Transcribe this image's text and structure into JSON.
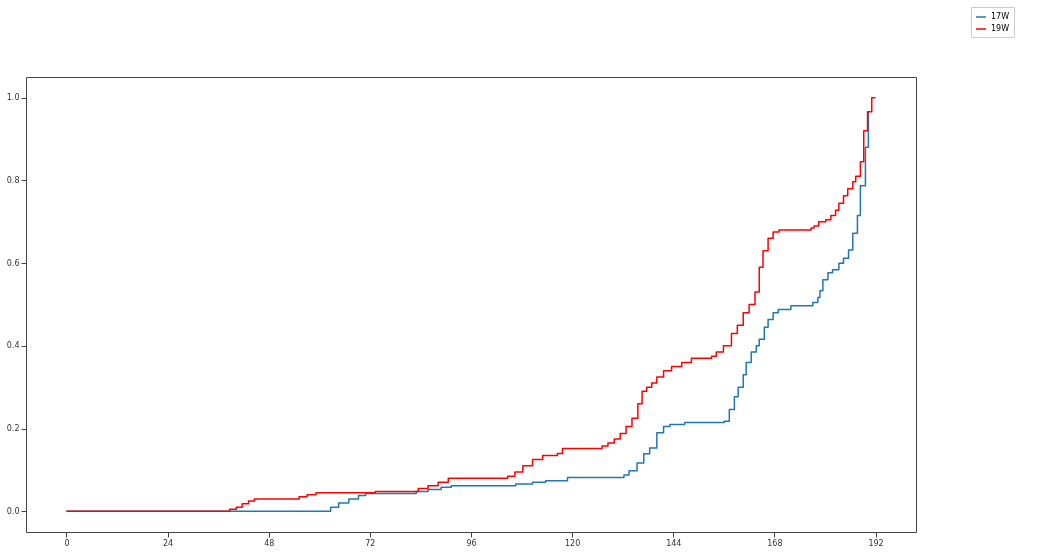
{
  "chart_data": {
    "type": "step",
    "legend": "top right",
    "grid": false,
    "line_style": "solid",
    "marker": "none",
    "xlim": [
      -9.6,
      201.6
    ],
    "ylim": [
      -0.05,
      1.05
    ],
    "xticks": [
      0,
      24,
      48,
      72,
      96,
      120,
      144,
      168,
      192
    ],
    "yticks": [
      {
        "value": 0,
        "label": "0.0"
      },
      {
        "value": 0.2,
        "label": "0.2"
      },
      {
        "value": 0.4,
        "label": "0.4"
      },
      {
        "value": 0.6,
        "label": "0.6"
      },
      {
        "value": 0.8,
        "label": "0.8"
      },
      {
        "value": 1,
        "label": "1.0"
      }
    ],
    "series": [
      {
        "name": "17W",
        "color": "#1f77b4",
        "x": [
          0,
          62.7,
          64.6,
          67,
          69.3,
          71,
          83,
          85.8,
          88.9,
          91.3,
          106.6,
          110.6,
          113.7,
          118.9,
          132.3,
          133.5,
          135.4,
          137,
          138.4,
          140.1,
          141.7,
          143.2,
          146.7,
          156.1,
          157.3,
          158.5,
          159.4,
          160.6,
          161.3,
          162.5,
          163.7,
          164.4,
          165.6,
          166.5,
          167.7,
          168.9,
          171.9,
          177.1,
          178.3,
          178.8,
          179.5,
          180.7,
          181.8,
          183.3,
          184.4,
          185.6,
          186.6,
          187.7,
          188.4,
          189.6,
          190.3
        ],
        "values": [
          0,
          0.01,
          0.02,
          0.03,
          0.038,
          0.043,
          0.048,
          0.053,
          0.058,
          0.062,
          0.066,
          0.07,
          0.074,
          0.082,
          0.088,
          0.098,
          0.117,
          0.139,
          0.153,
          0.19,
          0.205,
          0.21,
          0.215,
          0.218,
          0.246,
          0.277,
          0.3,
          0.33,
          0.36,
          0.385,
          0.4,
          0.416,
          0.445,
          0.464,
          0.48,
          0.488,
          0.497,
          0.505,
          0.517,
          0.533,
          0.56,
          0.577,
          0.584,
          0.6,
          0.612,
          0.632,
          0.672,
          0.715,
          0.787,
          0.88,
          0.966
        ]
      },
      {
        "name": "19W",
        "color": "#ff0000",
        "x": [
          0,
          38.7,
          40.3,
          41.7,
          43.2,
          44.6,
          55.2,
          57.1,
          59.2,
          73.3,
          83.5,
          85.8,
          88.2,
          90.6,
          104.7,
          106.4,
          108.3,
          110.6,
          113,
          116.5,
          117.7,
          127.1,
          128.5,
          130,
          131.4,
          132.8,
          134.2,
          135.6,
          136.6,
          137.7,
          138.9,
          140.1,
          141.7,
          143.6,
          146,
          148.3,
          153.1,
          154.2,
          155.9,
          157.8,
          159.2,
          160.6,
          162,
          163.4,
          164.4,
          165.3,
          166.5,
          167.7,
          169.1,
          176.7,
          177.4,
          178.5,
          180.2,
          181.4,
          182.5,
          183.3,
          184.4,
          185.4,
          186.6,
          187.3,
          188.4,
          189.2,
          190.1,
          191.1,
          192
        ],
        "values": [
          0,
          0.005,
          0.01,
          0.018,
          0.025,
          0.03,
          0.035,
          0.04,
          0.045,
          0.048,
          0.055,
          0.062,
          0.07,
          0.08,
          0.085,
          0.095,
          0.11,
          0.125,
          0.135,
          0.14,
          0.152,
          0.158,
          0.165,
          0.175,
          0.188,
          0.205,
          0.225,
          0.26,
          0.29,
          0.3,
          0.31,
          0.325,
          0.34,
          0.35,
          0.36,
          0.37,
          0.375,
          0.385,
          0.4,
          0.43,
          0.45,
          0.48,
          0.5,
          0.53,
          0.59,
          0.63,
          0.66,
          0.675,
          0.68,
          0.685,
          0.69,
          0.7,
          0.705,
          0.715,
          0.728,
          0.745,
          0.763,
          0.78,
          0.797,
          0.81,
          0.845,
          0.92,
          0.966,
          1,
          1
        ]
      }
    ]
  }
}
